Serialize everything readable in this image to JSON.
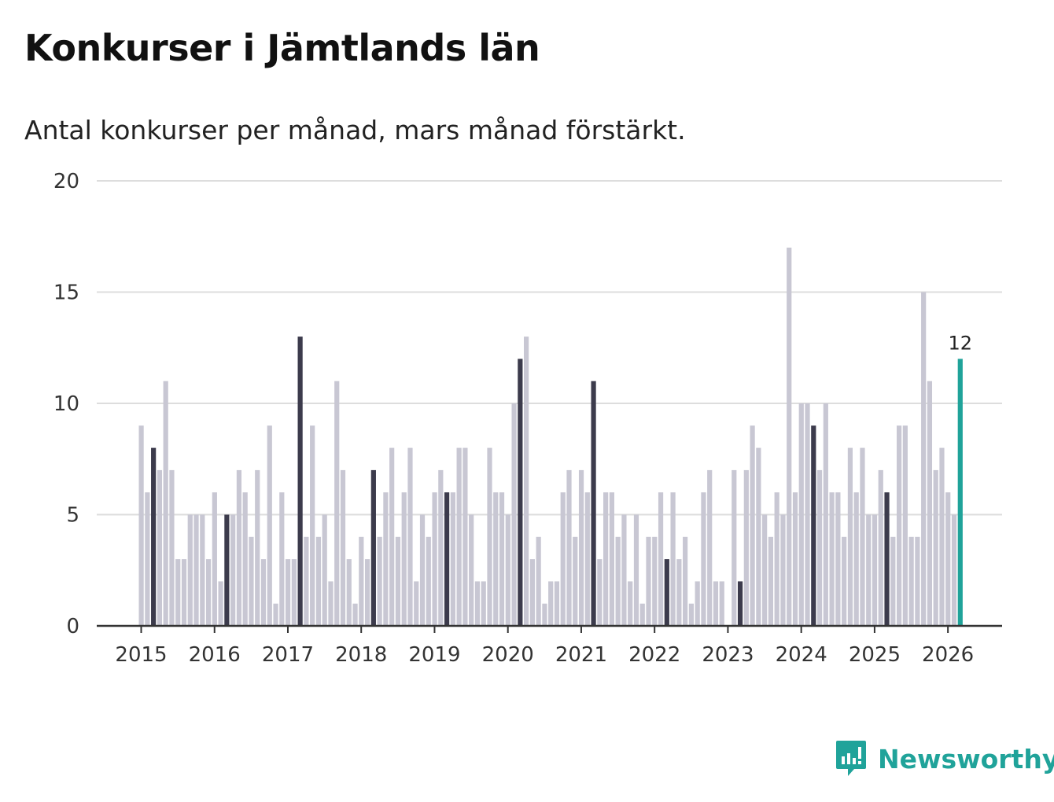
{
  "title": "Konkurser i Jämtlands län",
  "subtitle": "Antal konkurser per månad, mars månad förstärkt.",
  "brand": {
    "name": "Newsworthy",
    "icon": "newsworthy-logo-icon",
    "color": "#20a39a"
  },
  "colors": {
    "normal": "#c8c7d3",
    "march": "#3c3b4c",
    "latest": "#20a39a",
    "grid": "#dddddd",
    "axis": "#333333"
  },
  "chart_data": {
    "type": "bar",
    "title": "Konkurser i Jämtlands län",
    "xlabel": "",
    "ylabel": "",
    "ylim": [
      0,
      20
    ],
    "yticks": [
      "0",
      "5",
      "10",
      "15",
      "20"
    ],
    "xticks": [
      "2015",
      "2016",
      "2017",
      "2018",
      "2019",
      "2020",
      "2021",
      "2022",
      "2023",
      "2024",
      "2025",
      "2026"
    ],
    "start": "2015-01",
    "highlight_month": "mars",
    "grid": true,
    "latest_label": "12",
    "values": [
      9,
      6,
      8,
      7,
      11,
      7,
      3,
      3,
      5,
      5,
      5,
      3,
      6,
      2,
      5,
      5,
      7,
      6,
      4,
      7,
      3,
      9,
      1,
      6,
      3,
      3,
      13,
      4,
      9,
      4,
      5,
      2,
      11,
      7,
      3,
      1,
      4,
      3,
      7,
      4,
      6,
      8,
      4,
      6,
      8,
      2,
      5,
      4,
      6,
      7,
      6,
      6,
      8,
      8,
      5,
      2,
      2,
      8,
      6,
      6,
      5,
      10,
      12,
      13,
      3,
      4,
      1,
      2,
      2,
      6,
      7,
      4,
      7,
      6,
      11,
      3,
      6,
      6,
      4,
      5,
      2,
      5,
      1,
      4,
      4,
      6,
      3,
      6,
      3,
      4,
      1,
      2,
      6,
      7,
      2,
      2,
      0,
      7,
      2,
      7,
      9,
      8,
      5,
      4,
      6,
      5,
      17,
      6,
      10,
      10,
      9,
      7,
      10,
      6,
      6,
      4,
      8,
      6,
      8,
      5,
      5,
      7,
      6,
      4,
      9,
      9,
      4,
      4,
      15,
      11,
      7,
      8,
      6,
      5,
      12
    ]
  }
}
